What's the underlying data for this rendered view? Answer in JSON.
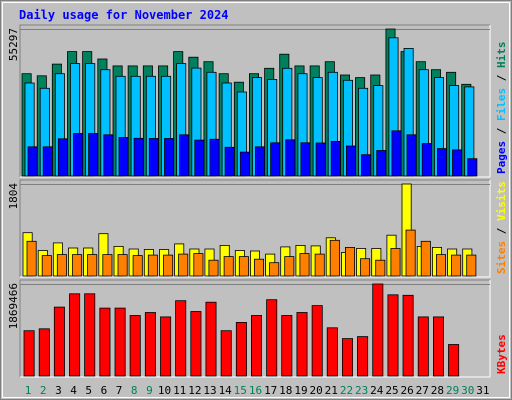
{
  "title": "Daily usage for November 2024",
  "colors": {
    "hits": "#00805c",
    "files": "#00c0ff",
    "pages": "#0000ff",
    "visits": "#ffff00",
    "sites": "#ff8000",
    "kbytes": "#ff0000",
    "title": "#0000ff",
    "weekend_day": "#00805c",
    "weekday": "#000000",
    "frame_bg": "#c0c0c0",
    "plot_bg": "#c0c0c0"
  },
  "chart_data": [
    {
      "type": "bar",
      "panel": "top",
      "ylabel_max": "55297",
      "ylim": [
        0,
        55297
      ],
      "x": [
        1,
        2,
        3,
        4,
        5,
        6,
        7,
        8,
        9,
        10,
        11,
        12,
        13,
        14,
        15,
        16,
        17,
        18,
        19,
        20,
        21,
        22,
        23,
        24,
        25,
        26,
        27,
        28,
        29,
        30,
        31
      ],
      "right_labels": [
        "Hits",
        "Files",
        "Pages"
      ],
      "series": [
        {
          "name": "Hits",
          "values": [
            38500,
            37700,
            42100,
            46800,
            46800,
            44000,
            41400,
            41400,
            41400,
            41400,
            46800,
            44700,
            43000,
            38500,
            35300,
            38500,
            40500,
            45800,
            41400,
            41400,
            43000,
            38000,
            37000,
            38000,
            55297,
            46800,
            43000,
            40000,
            39000,
            34500,
            0
          ]
        },
        {
          "name": "Files",
          "values": [
            35000,
            33000,
            38500,
            42300,
            42300,
            40000,
            37500,
            37500,
            37500,
            37500,
            42300,
            40600,
            39000,
            35000,
            31600,
            37000,
            36300,
            40500,
            38500,
            37000,
            39000,
            36000,
            33000,
            34000,
            52000,
            48000,
            40000,
            37000,
            34000,
            33500,
            0
          ]
        },
        {
          "name": "Pages",
          "values": [
            11000,
            11000,
            14000,
            16000,
            16000,
            15500,
            14500,
            14200,
            14100,
            14100,
            15500,
            13500,
            13800,
            10800,
            9000,
            11000,
            12500,
            13600,
            12500,
            12400,
            13000,
            11300,
            8000,
            9600,
            17000,
            15500,
            12200,
            10300,
            9800,
            6500,
            0
          ]
        }
      ]
    },
    {
      "type": "bar",
      "panel": "middle",
      "ylabel_max": "1804",
      "ylim": [
        0,
        1804
      ],
      "right_labels": [
        "Visits",
        "Sites"
      ],
      "series": [
        {
          "name": "Visits",
          "values": [
            850,
            500,
            650,
            550,
            550,
            830,
            580,
            530,
            520,
            520,
            630,
            530,
            530,
            600,
            500,
            490,
            430,
            570,
            600,
            590,
            750,
            460,
            540,
            540,
            800,
            1804,
            580,
            560,
            530,
            530,
            0
          ]
        },
        {
          "name": "Sites",
          "values": [
            680,
            400,
            420,
            420,
            420,
            420,
            420,
            400,
            410,
            410,
            430,
            440,
            310,
            380,
            380,
            330,
            260,
            380,
            440,
            430,
            700,
            560,
            340,
            310,
            540,
            900,
            680,
            420,
            410,
            410,
            0
          ]
        }
      ]
    },
    {
      "type": "bar",
      "panel": "bottom",
      "ylabel_max": "1869466",
      "ylim": [
        0,
        1869466
      ],
      "right_labels": [
        "KBytes"
      ],
      "series": [
        {
          "name": "KBytes",
          "values": [
            920000,
            960000,
            1400000,
            1670000,
            1670000,
            1380000,
            1380000,
            1230000,
            1290000,
            1200000,
            1530000,
            1310000,
            1500000,
            920000,
            1090000,
            1230000,
            1550000,
            1230000,
            1290000,
            1430000,
            980000,
            760000,
            800000,
            1869466,
            1650000,
            1640000,
            1200000,
            1200000,
            640000,
            0,
            0
          ]
        }
      ]
    }
  ]
}
